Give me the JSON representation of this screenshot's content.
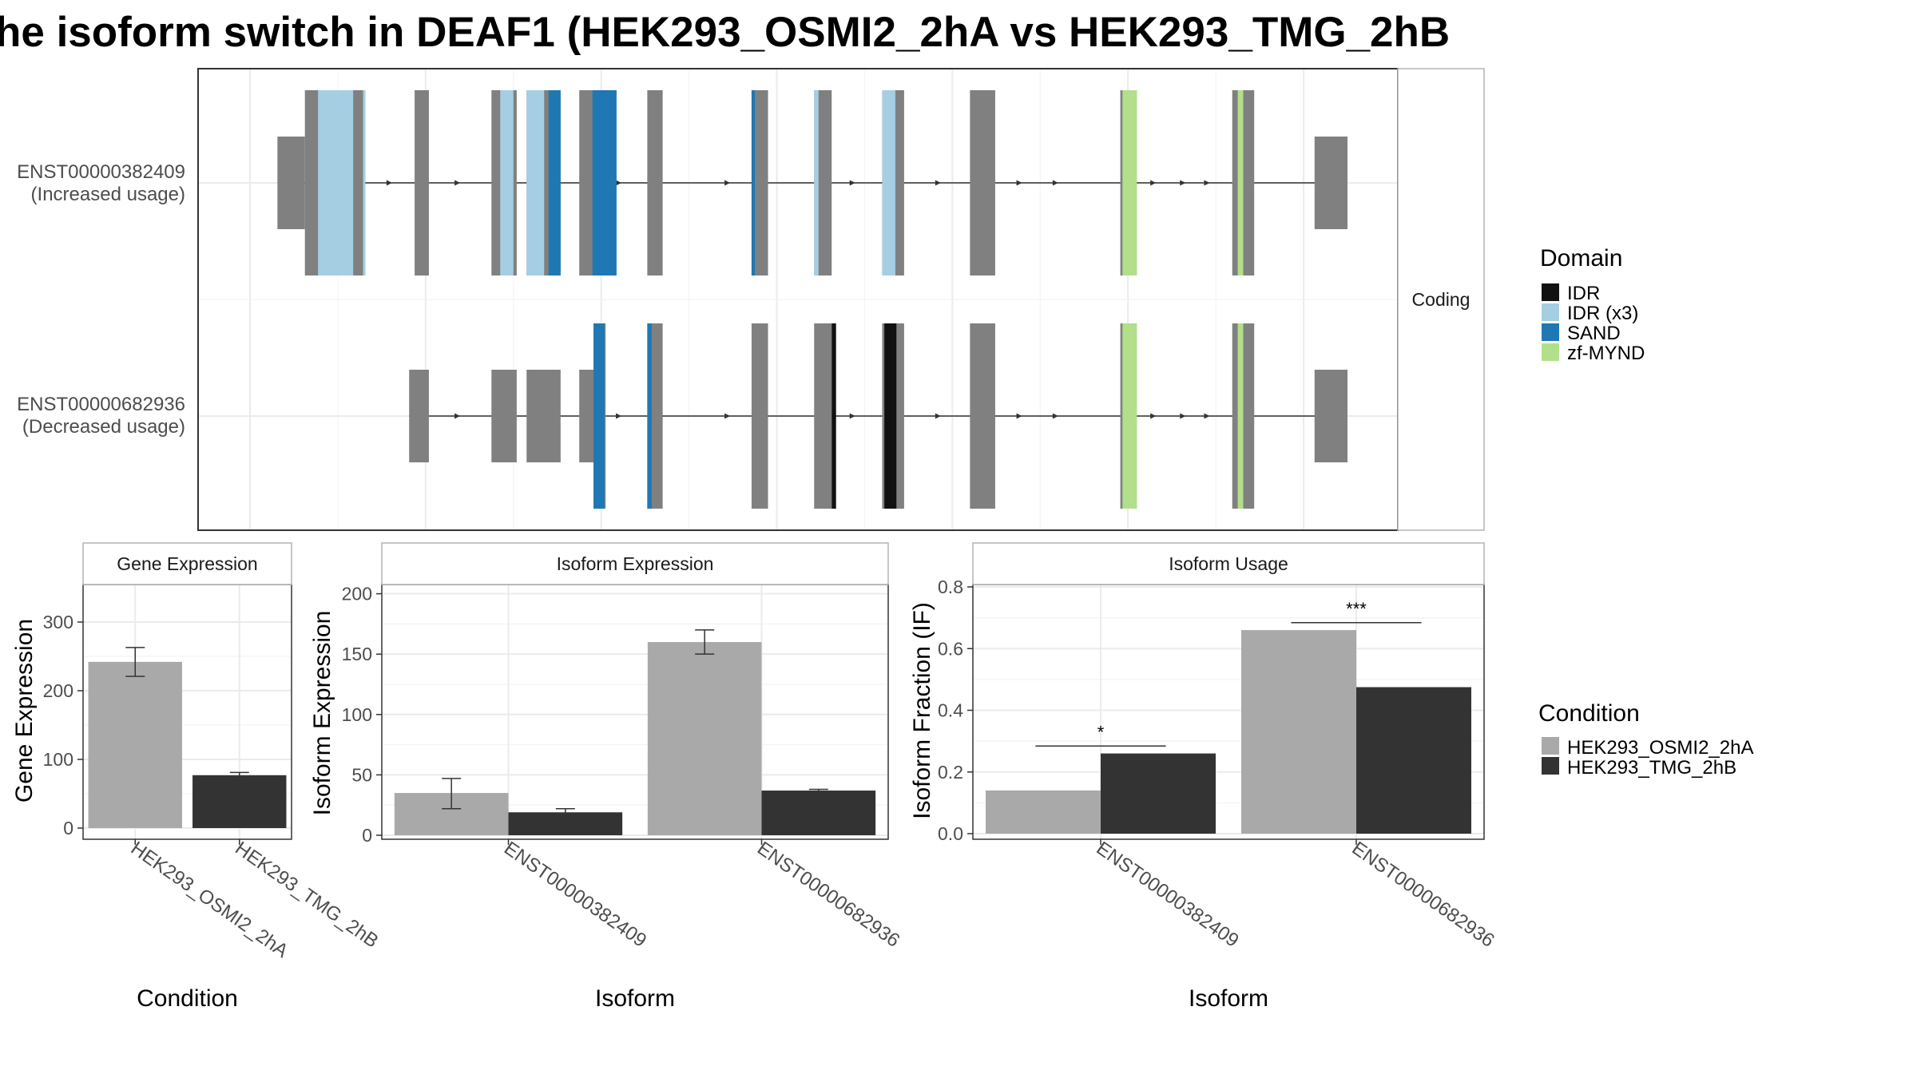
{
  "page_title": "he isoform switch in DEAF1 (HEK293_OSMI2_2hA vs HEK293_TMG_2hB",
  "colors": {
    "exon": "#808080",
    "intron": "#333333",
    "condition_a": "#a9a9a9",
    "condition_b": "#333333",
    "panel_border": "#333333",
    "strip_border": "#b3b3b3",
    "grid": "#ebebeb"
  },
  "transcript_panel": {
    "facet_label": "Coding",
    "transcripts": [
      {
        "id": "ENST00000382409",
        "usage": "(Increased usage)",
        "utr_blocks": [
          [
            2.5,
            5.0
          ],
          [
            97.0,
            100.0
          ]
        ],
        "cds_blocks": [
          [
            5.0,
            10.5
          ],
          [
            15.0,
            16.3
          ],
          [
            22.0,
            24.3
          ],
          [
            25.2,
            28.3
          ],
          [
            30.0,
            32.4
          ],
          [
            36.2,
            37.6
          ],
          [
            45.7,
            47.2
          ],
          [
            51.4,
            53.0
          ],
          [
            57.6,
            59.6
          ],
          [
            65.6,
            67.9
          ],
          [
            79.3,
            80.8
          ],
          [
            89.5,
            91.5
          ]
        ],
        "domains": [
          [
            6.2,
            9.4,
            "IDR (x3)"
          ],
          [
            10.3,
            10.5,
            "IDR (x3)"
          ],
          [
            22.8,
            24.0,
            "IDR (x3)"
          ],
          [
            25.2,
            26.8,
            "IDR (x3)"
          ],
          [
            27.2,
            28.3,
            "SAND"
          ],
          [
            31.2,
            33.4,
            "SAND"
          ],
          [
            45.7,
            46.0,
            "SAND"
          ],
          [
            51.4,
            51.8,
            "IDR (x3)"
          ],
          [
            57.6,
            58.8,
            "IDR (x3)"
          ],
          [
            79.5,
            80.8,
            "zf-MYND"
          ],
          [
            90.0,
            90.5,
            "zf-MYND"
          ]
        ],
        "arrows": [
          12.8,
          19.0,
          33.7,
          43.6,
          55.0,
          62.8,
          70.2,
          73.5,
          82.4,
          85.1,
          87.3
        ]
      },
      {
        "id": "ENST00000682936",
        "usage": "(Decreased usage)",
        "utr_blocks": [
          [
            14.5,
            16.3
          ],
          [
            22.0,
            24.3
          ],
          [
            25.2,
            28.3
          ],
          [
            30.0,
            32.3
          ],
          [
            97.0,
            100.0
          ]
        ],
        "cds_blocks": [
          [
            31.3,
            32.4
          ],
          [
            36.2,
            37.6
          ],
          [
            45.7,
            47.2
          ],
          [
            51.4,
            53.0
          ],
          [
            57.6,
            59.6
          ],
          [
            65.6,
            67.9
          ],
          [
            79.3,
            80.8
          ],
          [
            89.5,
            91.5
          ]
        ],
        "domains": [
          [
            31.3,
            32.3,
            "SAND"
          ],
          [
            36.2,
            36.6,
            "SAND"
          ],
          [
            53.0,
            53.4,
            "IDR"
          ],
          [
            57.8,
            58.9,
            "IDR"
          ],
          [
            79.5,
            80.8,
            "zf-MYND"
          ],
          [
            90.0,
            90.5,
            "zf-MYND"
          ]
        ],
        "arrows": [
          19.0,
          33.7,
          43.6,
          55.0,
          62.8,
          70.2,
          73.5,
          82.4,
          85.1,
          87.3
        ]
      }
    ]
  },
  "domain_legend": {
    "title": "Domain",
    "items": [
      {
        "label": "IDR",
        "color": "#111111"
      },
      {
        "label": "IDR (x3)",
        "color": "#a6cee3"
      },
      {
        "label": "SAND",
        "color": "#1f78b4"
      },
      {
        "label": "zf-MYND",
        "color": "#b2df8a"
      }
    ]
  },
  "condition_legend": {
    "title": "Condition",
    "items": [
      {
        "label": "HEK293_OSMI2_2hA",
        "color": "#a9a9a9"
      },
      {
        "label": "HEK293_TMG_2hB",
        "color": "#333333"
      }
    ]
  },
  "chart_data": [
    {
      "type": "bar",
      "title": "Gene Expression",
      "xlabel": "Condition",
      "ylabel": "Gene Expression",
      "categories": [
        "HEK293_OSMI2_2hA",
        "HEK293_TMG_2hB"
      ],
      "values": [
        242,
        77
      ],
      "error": [
        [
          221,
          263
        ],
        [
          73,
          81
        ]
      ],
      "yticks": [
        0,
        100,
        200,
        300
      ],
      "ylim": [
        0,
        350
      ],
      "grid": true
    },
    {
      "type": "bar",
      "title": "Isoform Expression",
      "xlabel": "Isoform",
      "ylabel": "Isoform Expression",
      "categories": [
        "ENST00000382409",
        "ENST00000682936"
      ],
      "series": [
        {
          "name": "HEK293_OSMI2_2hA",
          "values": [
            35,
            160
          ],
          "error": [
            [
              22,
              47
            ],
            [
              150,
              170
            ]
          ]
        },
        {
          "name": "HEK293_TMG_2hB",
          "values": [
            19,
            37
          ],
          "error": [
            [
              16,
              22
            ],
            [
              35,
              38
            ]
          ]
        }
      ],
      "yticks": [
        0,
        50,
        100,
        150,
        200
      ],
      "ylim": [
        0,
        205
      ],
      "grid": true
    },
    {
      "type": "bar",
      "title": "Isoform Usage",
      "xlabel": "Isoform",
      "ylabel": "Isoform Fraction (IF)",
      "categories": [
        "ENST00000382409",
        "ENST00000682936"
      ],
      "series": [
        {
          "name": "HEK293_OSMI2_2hA",
          "values": [
            0.14,
            0.66
          ]
        },
        {
          "name": "HEK293_TMG_2hB",
          "values": [
            0.26,
            0.475
          ]
        }
      ],
      "significance": [
        "*",
        "***"
      ],
      "yticks": [
        "0.0",
        "0.2",
        "0.4",
        "0.6",
        "0.8"
      ],
      "ylim": [
        0,
        0.8
      ],
      "grid": true
    }
  ]
}
